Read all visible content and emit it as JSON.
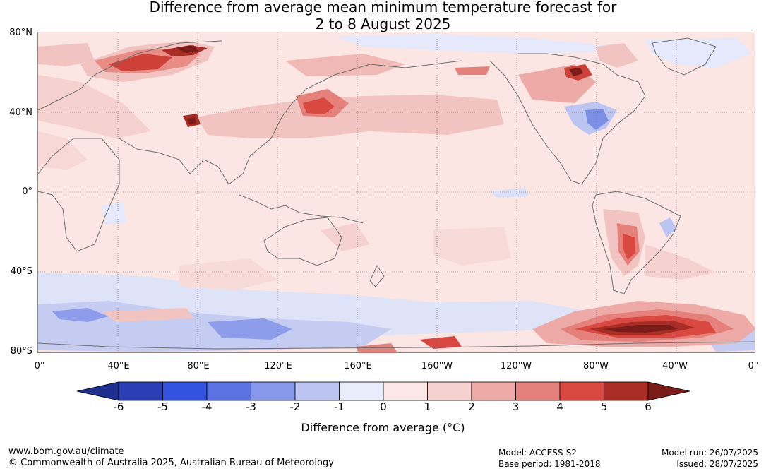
{
  "title": {
    "line1": "Difference from average mean minimum temperature forecast for",
    "line2": "2 to 8 August 2025"
  },
  "map": {
    "lat_labels": [
      "80°N",
      "40°N",
      "0°",
      "40°S",
      "80°S"
    ],
    "lon_labels": [
      "0°",
      "40°E",
      "80°E",
      "120°E",
      "160°E",
      "160°W",
      "120°W",
      "80°W",
      "40°W",
      "0°"
    ]
  },
  "colorbar": {
    "ticks": [
      "-6",
      "-5",
      "-4",
      "-3",
      "-2",
      "-1",
      "0",
      "1",
      "2",
      "3",
      "4",
      "5",
      "6"
    ],
    "colors": [
      "#1f2f8f",
      "#2a3fb5",
      "#3452e0",
      "#5a72e2",
      "#8797ea",
      "#bcc5f2",
      "#e9ecfb",
      "#fbe8e6",
      "#f5d2d0",
      "#edaaa6",
      "#e5807b",
      "#d94841",
      "#a92c25",
      "#7a1d18"
    ],
    "title": "Difference from average (°C)"
  },
  "footer": {
    "url": "www.bom.gov.au/climate",
    "copyright": "© Commonwealth of Australia 2025, Australian Bureau of Meteorology",
    "model": "Model: ACCESS-S2",
    "base_period": "Base period: 1981-2018",
    "model_run": "Model run: 26/07/2025",
    "issued": "Issued: 28/07/2025"
  }
}
